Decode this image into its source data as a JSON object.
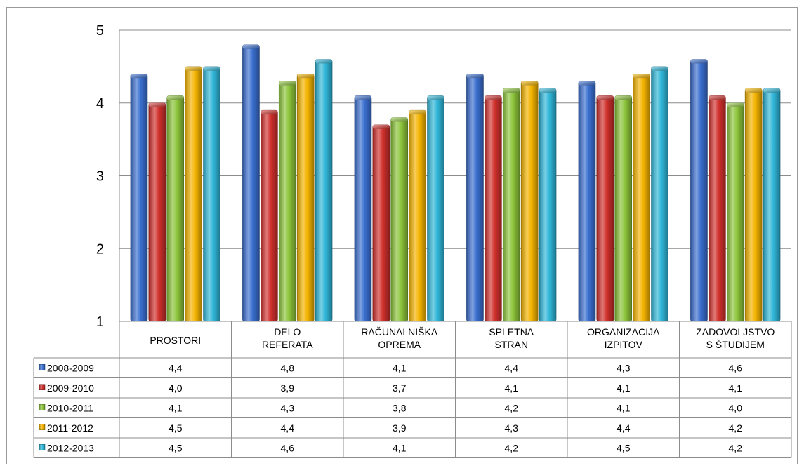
{
  "chart_data": {
    "type": "bar",
    "title": "",
    "xlabel": "",
    "ylabel": "",
    "ylim": [
      1,
      5
    ],
    "yticks": [
      "1",
      "2",
      "3",
      "4",
      "5"
    ],
    "grid": true,
    "legend": "data-table-left",
    "categories": [
      [
        "PROSTORI"
      ],
      [
        "DELO",
        "REFERATA"
      ],
      [
        "RAČUNALNIŠKA",
        "OPREMA"
      ],
      [
        "SPLETNA",
        "STRAN"
      ],
      [
        "ORGANIZACIJA",
        "IZPITOV"
      ],
      [
        "ZADOVOLJSTVO",
        "S ŠTUDIJEM"
      ]
    ],
    "series": [
      {
        "name": "2008-2009",
        "color": "#3a6fd0",
        "values": [
          4.4,
          4.8,
          4.1,
          4.4,
          4.3,
          4.6
        ],
        "labels": [
          "4,4",
          "4,8",
          "4,1",
          "4,4",
          "4,3",
          "4,6"
        ]
      },
      {
        "name": "2009-2010",
        "color": "#d0302c",
        "values": [
          4.0,
          3.9,
          3.7,
          4.1,
          4.1,
          4.1
        ],
        "labels": [
          "4,0",
          "3,9",
          "3,7",
          "4,1",
          "4,1",
          "4,1"
        ]
      },
      {
        "name": "2010-2011",
        "color": "#8cc43a",
        "values": [
          4.1,
          4.3,
          3.8,
          4.2,
          4.1,
          4.0
        ],
        "labels": [
          "4,1",
          "4,3",
          "3,8",
          "4,2",
          "4,1",
          "4,0"
        ]
      },
      {
        "name": "2011-2012",
        "color": "#f4b400",
        "values": [
          4.5,
          4.4,
          3.9,
          4.3,
          4.4,
          4.2
        ],
        "labels": [
          "4,5",
          "4,4",
          "3,9",
          "4,3",
          "4,4",
          "4,2"
        ]
      },
      {
        "name": "2012-2013",
        "color": "#2fb6d8",
        "values": [
          4.5,
          4.6,
          4.1,
          4.2,
          4.5,
          4.2
        ],
        "labels": [
          "4,5",
          "4,6",
          "4,1",
          "4,2",
          "4,5",
          "4,2"
        ]
      }
    ]
  }
}
